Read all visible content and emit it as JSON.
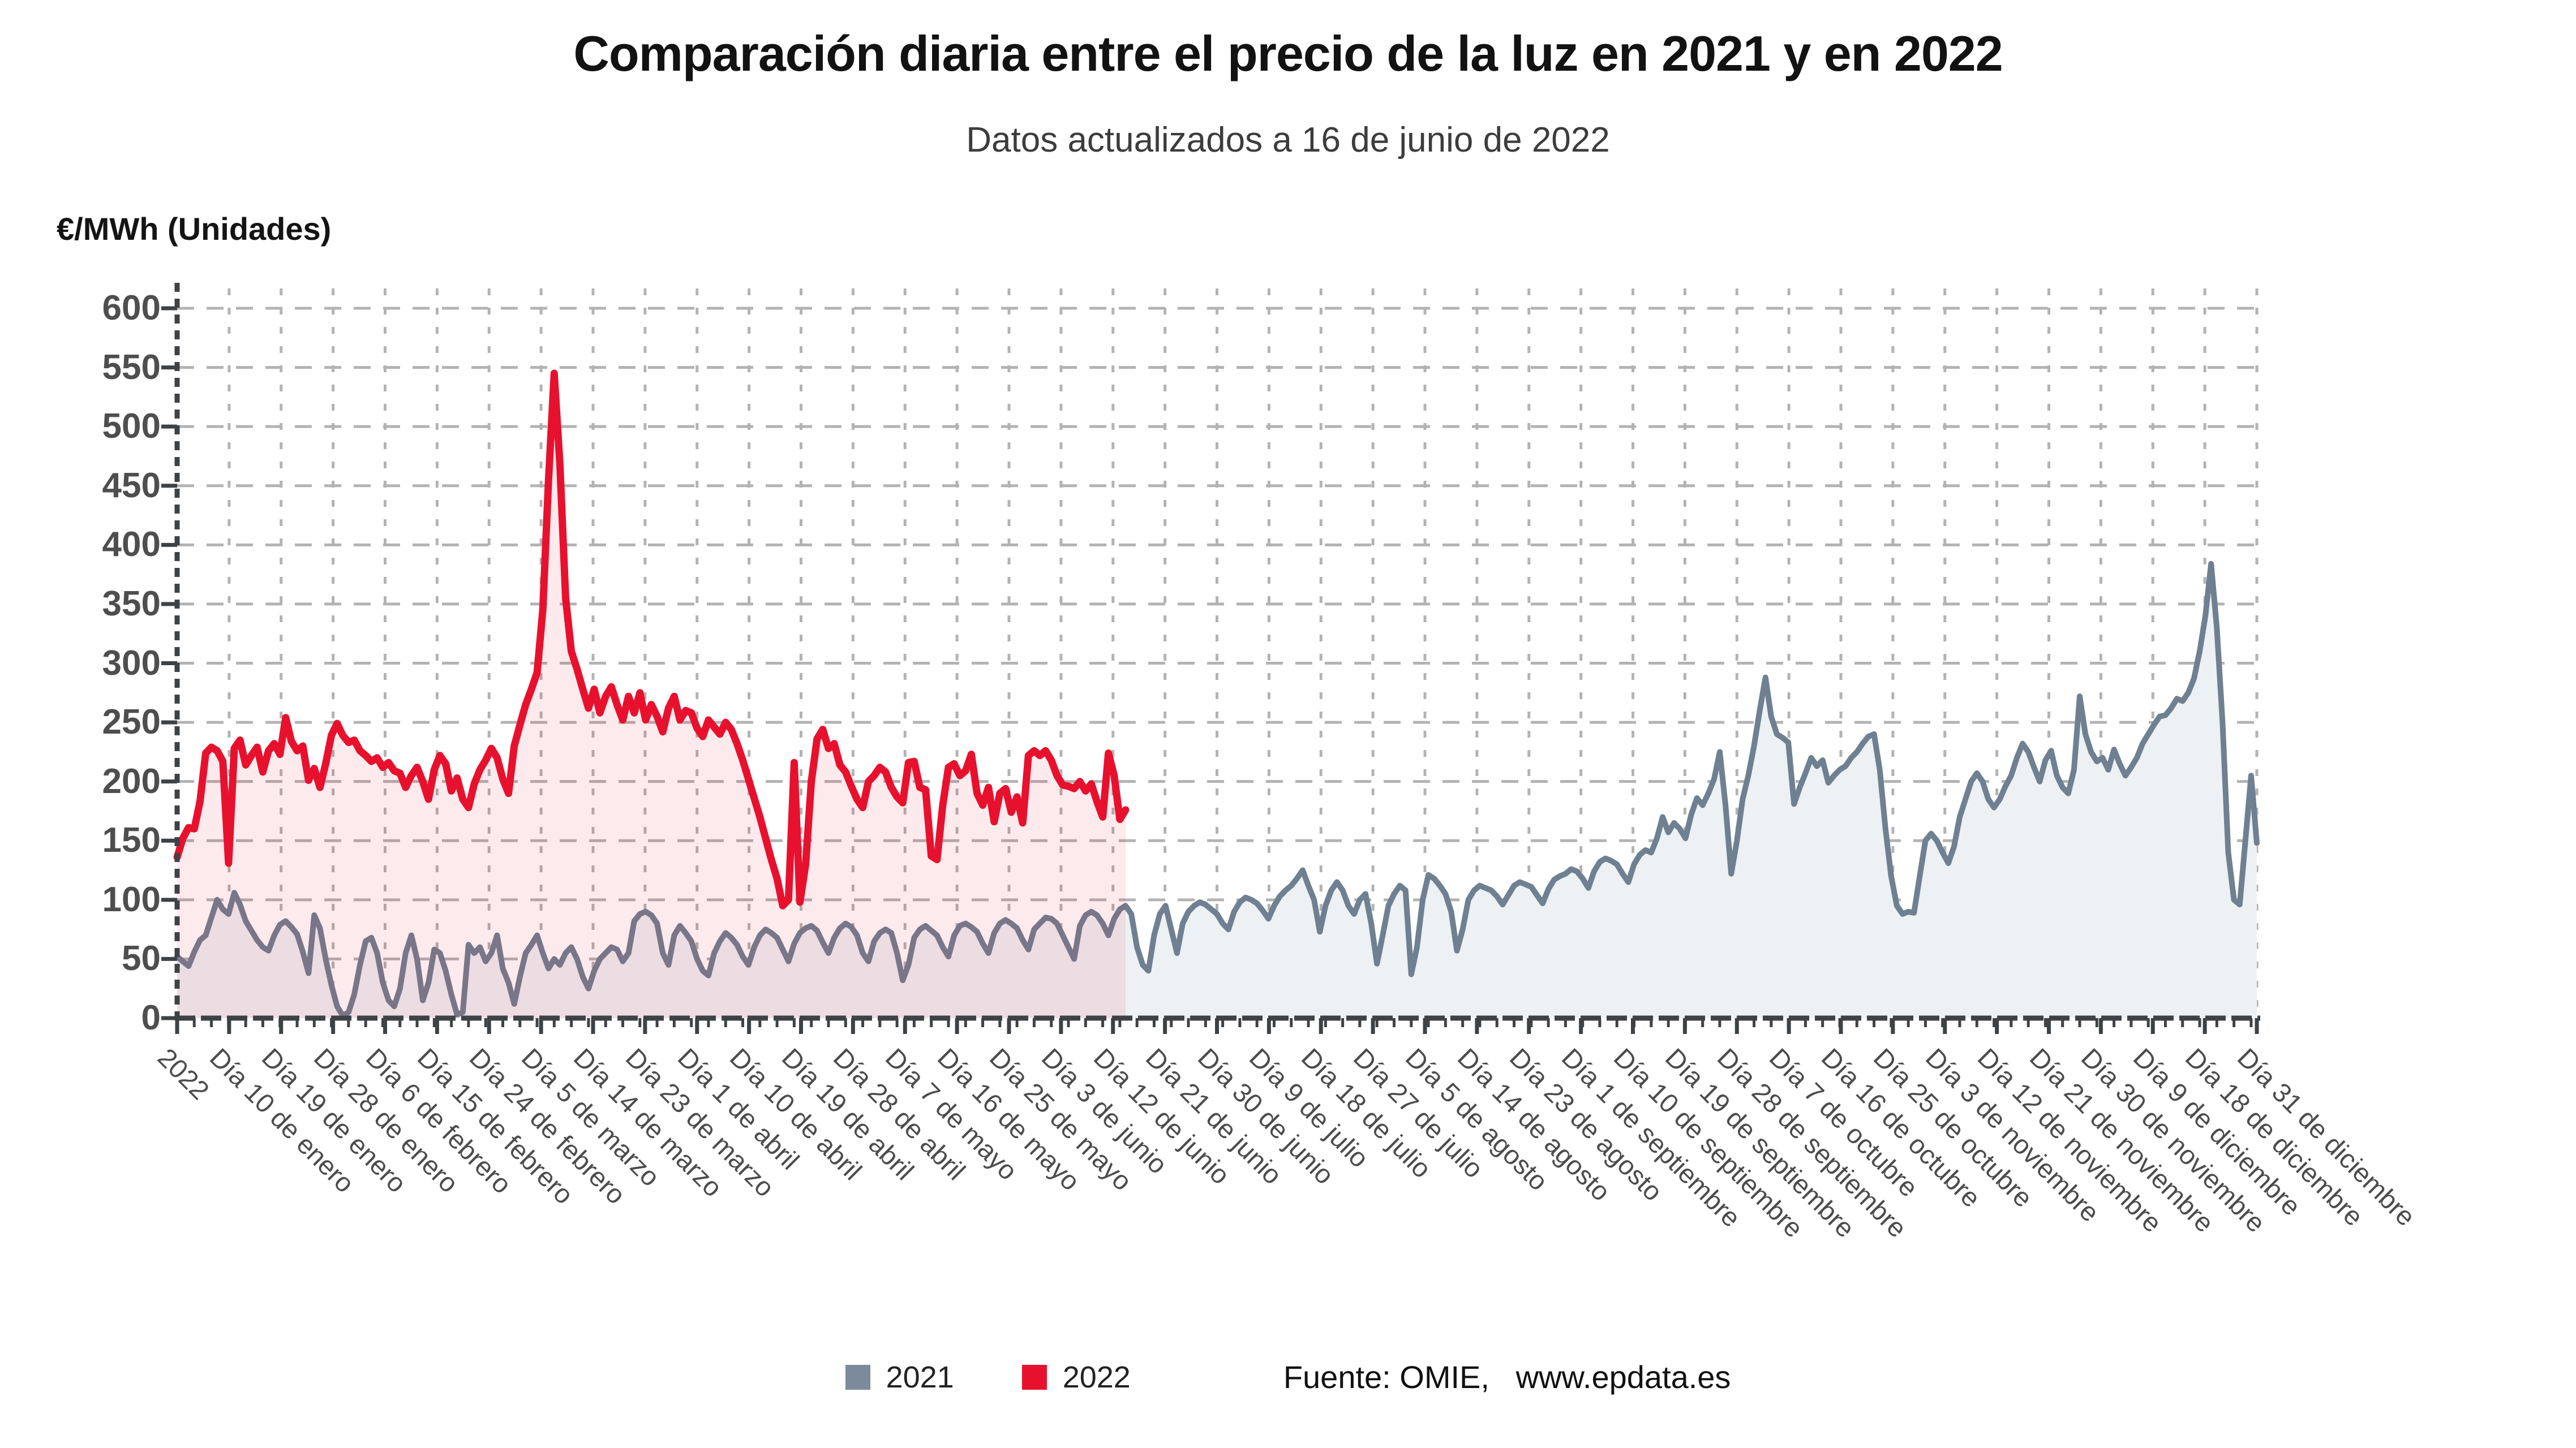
{
  "title": "Comparación diaria entre el precio de la luz en 2021 y en 2022",
  "subtitle": "Datos actualizados a 16 de junio de 2022",
  "y_axis": {
    "unit_label": "€/MWh (Unidades)",
    "tick_values": [
      0,
      50,
      100,
      150,
      200,
      250,
      300,
      350,
      400,
      450,
      500,
      550,
      600
    ],
    "min": 0,
    "max": 600
  },
  "x_axis": {
    "tick_labels": [
      "2022",
      "Día 10 de enero",
      "Día 19 de enero",
      "Día 28 de enero",
      "Día 6 de febrero",
      "Día 15 de febrero",
      "Día 24 de febrero",
      "Día 5 de marzo",
      "Día 14 de marzo",
      "Día 23 de marzo",
      "Día 1 de abril",
      "Día 10 de abril",
      "Día 19 de abril",
      "Día 28 de abril",
      "Día 7 de mayo",
      "Día 16 de mayo",
      "Día 25 de mayo",
      "Día 3 de junio",
      "Día 12 de junio",
      "Día 21 de junio",
      "Día 30 de junio",
      "Día 9 de julio",
      "Día 18 de julio",
      "Día 27 de julio",
      "Día 5 de agosto",
      "Día 14 de agosto",
      "Día 23 de agosto",
      "Día 1 de septiembre",
      "Día 10 de septiembre",
      "Día 19 de septiembre",
      "Día 28 de septiembre",
      "Día 7 de octubre",
      "Día 16 de octubre",
      "Día 25 de octubre",
      "Día 3 de noviembre",
      "Día 12 de noviembre",
      "Día 21 de noviembre",
      "Día 30 de noviembre",
      "Día 9 de diciembre",
      "Día 18 de diciembre",
      "Día 31 de diciembre"
    ]
  },
  "legend": {
    "items": [
      {
        "label": "2021",
        "color": "#7C8B9B"
      },
      {
        "label": "2022",
        "color": "#E8112D"
      }
    ],
    "source_prefix": "Fuente: OMIE,",
    "source_link": "www.epdata.es"
  },
  "colors": {
    "grid": "#b3b3b3",
    "axis": "#3f4245",
    "tick_text": "#4c4c4c",
    "series_2021_line": "#6E8091",
    "series_2021_fill": "#EDF1F4",
    "series_2022_line": "#E8112D",
    "series_2022_fill": "rgba(232,17,45,0.085)"
  },
  "chart_data": {
    "type": "line",
    "title": "Comparación diaria entre el precio de la luz en 2021 y en 2022",
    "subtitle": "Datos actualizados a 16 de junio de 2022",
    "ylabel": "€/MWh (Unidades)",
    "ylim": [
      0,
      600
    ],
    "grid": true,
    "legend_position": "bottom",
    "x_days_in_year": 365,
    "x_tick_labels": [
      "2022",
      "Día 10 de enero",
      "Día 19 de enero",
      "Día 28 de enero",
      "Día 6 de febrero",
      "Día 15 de febrero",
      "Día 24 de febrero",
      "Día 5 de marzo",
      "Día 14 de marzo",
      "Día 23 de marzo",
      "Día 1 de abril",
      "Día 10 de abril",
      "Día 19 de abril",
      "Día 28 de abril",
      "Día 7 de mayo",
      "Día 16 de mayo",
      "Día 25 de mayo",
      "Día 3 de junio",
      "Día 12 de junio",
      "Día 21 de junio",
      "Día 30 de junio",
      "Día 9 de julio",
      "Día 18 de julio",
      "Día 27 de julio",
      "Día 5 de agosto",
      "Día 14 de agosto",
      "Día 23 de agosto",
      "Día 1 de septiembre",
      "Día 10 de septiembre",
      "Día 19 de septiembre",
      "Día 28 de septiembre",
      "Día 7 de octubre",
      "Día 16 de octubre",
      "Día 25 de octubre",
      "Día 3 de noviembre",
      "Día 12 de noviembre",
      "Día 21 de noviembre",
      "Día 30 de noviembre",
      "Día 9 de diciembre",
      "Día 18 de diciembre",
      "Día 31 de diciembre"
    ],
    "series": [
      {
        "name": "2021",
        "start_day": 1,
        "values": [
          52,
          48,
          44,
          56,
          66,
          70,
          85,
          100,
          92,
          88,
          106,
          96,
          82,
          74,
          66,
          60,
          57,
          70,
          79,
          82,
          77,
          71,
          56,
          38,
          87,
          76,
          50,
          28,
          10,
          2,
          5,
          20,
          45,
          65,
          68,
          55,
          30,
          15,
          10,
          25,
          55,
          70,
          50,
          15,
          30,
          58,
          55,
          40,
          20,
          3,
          5,
          62,
          55,
          60,
          48,
          55,
          70,
          42,
          30,
          12,
          35,
          55,
          62,
          70,
          55,
          42,
          50,
          45,
          55,
          60,
          50,
          35,
          25,
          40,
          50,
          55,
          60,
          58,
          48,
          55,
          82,
          88,
          90,
          87,
          80,
          55,
          45,
          70,
          78,
          72,
          65,
          50,
          40,
          36,
          55,
          65,
          72,
          68,
          62,
          52,
          45,
          60,
          70,
          75,
          72,
          68,
          58,
          48,
          63,
          72,
          76,
          78,
          74,
          64,
          55,
          68,
          76,
          80,
          77,
          70,
          55,
          48,
          65,
          72,
          75,
          72,
          55,
          32,
          45,
          68,
          75,
          78,
          74,
          70,
          60,
          52,
          70,
          78,
          80,
          77,
          73,
          63,
          55,
          72,
          80,
          83,
          80,
          76,
          66,
          58,
          75,
          80,
          85,
          84,
          80,
          70,
          60,
          50,
          78,
          87,
          90,
          87,
          80,
          70,
          84,
          92,
          95,
          88,
          60,
          45,
          40,
          70,
          88,
          95,
          75,
          55,
          80,
          90,
          95,
          98,
          96,
          92,
          88,
          80,
          75,
          90,
          98,
          102,
          100,
          97,
          91,
          84,
          95,
          103,
          108,
          112,
          118,
          125,
          112,
          100,
          73,
          95,
          108,
          115,
          108,
          95,
          88,
          100,
          105,
          80,
          46,
          70,
          95,
          105,
          112,
          108,
          37,
          60,
          100,
          121,
          118,
          112,
          105,
          90,
          57,
          75,
          100,
          108,
          112,
          110,
          108,
          103,
          96,
          104,
          112,
          115,
          113,
          111,
          104,
          97,
          109,
          117,
          120,
          122,
          126,
          124,
          118,
          110,
          124,
          132,
          135,
          133,
          130,
          122,
          115,
          130,
          138,
          142,
          140,
          152,
          170,
          157,
          165,
          160,
          152,
          172,
          186,
          180,
          190,
          202,
          225,
          180,
          122,
          150,
          185,
          205,
          230,
          260,
          288,
          255,
          240,
          237,
          233,
          181,
          195,
          207,
          220,
          213,
          218,
          199,
          205,
          210,
          213,
          220,
          225,
          232,
          238,
          240,
          210,
          160,
          120,
          95,
          88,
          90,
          89,
          120,
          150,
          156,
          150,
          140,
          131,
          145,
          170,
          185,
          200,
          207,
          200,
          185,
          178,
          185,
          196,
          205,
          220,
          232,
          225,
          212,
          200,
          218,
          226,
          205,
          195,
          190,
          210,
          272,
          240,
          225,
          217,
          220,
          210,
          227,
          215,
          205,
          212,
          220,
          232,
          240,
          248,
          255,
          256,
          262,
          270,
          268,
          275,
          287,
          310,
          340,
          384,
          330,
          250,
          140,
          100,
          96,
          150,
          205,
          148
        ]
      },
      {
        "name": "2022",
        "start_day": 1,
        "values": [
          136,
          152,
          161,
          160,
          183,
          224,
          229,
          226,
          217,
          131,
          228,
          235,
          214,
          222,
          229,
          208,
          226,
          232,
          223,
          254,
          234,
          226,
          230,
          201,
          211,
          195,
          215,
          239,
          249,
          239,
          233,
          235,
          226,
          222,
          217,
          220,
          212,
          216,
          209,
          207,
          195,
          205,
          212,
          200,
          185,
          210,
          222,
          215,
          192,
          203,
          185,
          178,
          198,
          210,
          218,
          228,
          220,
          202,
          190,
          230,
          248,
          265,
          278,
          292,
          345,
          455,
          545,
          468,
          355,
          310,
          295,
          278,
          262,
          278,
          258,
          272,
          280,
          265,
          252,
          272,
          258,
          275,
          252,
          265,
          255,
          242,
          262,
          272,
          252,
          260,
          258,
          245,
          238,
          252,
          246,
          240,
          250,
          244,
          232,
          218,
          202,
          186,
          170,
          152,
          134,
          118,
          95,
          100,
          216,
          98,
          130,
          200,
          236,
          244,
          228,
          232,
          214,
          208,
          196,
          185,
          178,
          200,
          205,
          212,
          208,
          195,
          187,
          182,
          216,
          217,
          195,
          193,
          137,
          134,
          180,
          212,
          215,
          205,
          209,
          223,
          190,
          180,
          195,
          166,
          190,
          194,
          174,
          187,
          165,
          222,
          226,
          222,
          226,
          218,
          205,
          197,
          196,
          194,
          200,
          192,
          198,
          183,
          170,
          224,
          205,
          168,
          176
        ]
      }
    ]
  }
}
